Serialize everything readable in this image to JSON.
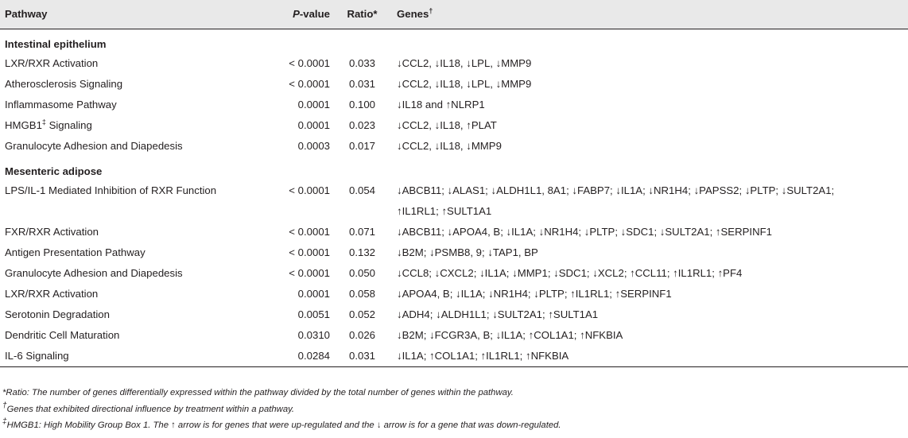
{
  "header": {
    "pathway": "Pathway",
    "pvalue_p": "P",
    "pvalue_rest": "-value",
    "ratio": "Ratio*",
    "genes": "Genes",
    "genes_sup": "†"
  },
  "sections": [
    {
      "title": "Intestinal epithelium",
      "rows": [
        {
          "pathway": "LXR/RXR Activation",
          "pvalue": "< 0.0001",
          "ratio": "0.033",
          "genes": "↓CCL2, ↓IL18, ↓LPL, ↓MMP9"
        },
        {
          "pathway": "Atherosclerosis Signaling",
          "pvalue": "< 0.0001",
          "ratio": "0.031",
          "genes": "↓CCL2, ↓IL18, ↓LPL, ↓MMP9"
        },
        {
          "pathway": "Inflammasome Pathway",
          "pvalue": "0.0001",
          "ratio": "0.100",
          "genes": "↓IL18 and ↑NLRP1"
        },
        {
          "pathway": "HMGB1",
          "pathway_sup": "‡",
          "pathway_suffix": " Signaling",
          "pvalue": "0.0001",
          "ratio": "0.023",
          "genes": "↓CCL2, ↓IL18, ↑PLAT"
        },
        {
          "pathway": "Granulocyte Adhesion and Diapedesis",
          "pvalue": "0.0003",
          "ratio": "0.017",
          "genes": "↓CCL2, ↓IL18, ↓MMP9"
        }
      ]
    },
    {
      "title": "Mesenteric adipose",
      "rows": [
        {
          "pathway": "LPS/IL-1 Mediated Inhibition of RXR Function",
          "pvalue": "< 0.0001",
          "ratio": "0.054",
          "genes": "↓ABCB11; ↓ALAS1; ↓ALDH1L1, 8A1; ↓FABP7; ↓IL1A; ↓NR1H4; ↓PAPSS2; ↓PLTP; ↓SULT2A1;",
          "genes_line2": "↑IL1RL1; ↑SULT1A1"
        },
        {
          "pathway": "FXR/RXR Activation",
          "pvalue": "< 0.0001",
          "ratio": "0.071",
          "genes": "↓ABCB11; ↓APOA4, B; ↓IL1A; ↓NR1H4; ↓PLTP; ↓SDC1; ↓SULT2A1; ↑SERPINF1"
        },
        {
          "pathway": "Antigen Presentation Pathway",
          "pvalue": "< 0.0001",
          "ratio": "0.132",
          "genes": "↓B2M; ↓PSMB8, 9; ↓TAP1, BP"
        },
        {
          "pathway": "Granulocyte Adhesion and Diapedesis",
          "pvalue": "< 0.0001",
          "ratio": "0.050",
          "genes": "↓CCL8; ↓CXCL2; ↓IL1A; ↓MMP1; ↓SDC1; ↓XCL2; ↑CCL11; ↑IL1RL1; ↑PF4"
        },
        {
          "pathway": "LXR/RXR Activation",
          "pvalue": "0.0001",
          "ratio": "0.058",
          "genes": "↓APOA4, B; ↓IL1A; ↓NR1H4; ↓PLTP; ↑IL1RL1; ↑SERPINF1"
        },
        {
          "pathway": "Serotonin Degradation",
          "pvalue": "0.0051",
          "ratio": "0.052",
          "genes": "↓ADH4; ↓ALDH1L1; ↓SULT2A1; ↑SULT1A1"
        },
        {
          "pathway": "Dendritic Cell Maturation",
          "pvalue": "0.0310",
          "ratio": "0.026",
          "genes": "↓B2M; ↓FCGR3A, B; ↓IL1A; ↑COL1A1; ↑NFKBIA"
        },
        {
          "pathway": "IL-6 Signaling",
          "pvalue": "0.0284",
          "ratio": "0.031",
          "genes": "↓IL1A; ↑COL1A1; ↑IL1RL1; ↑NFKBIA"
        }
      ]
    }
  ],
  "footnotes": {
    "ratio": "*Ratio: The number of genes differentially expressed within the pathway divided by the total number of genes within the pathway.",
    "genes_sym": "†",
    "genes": "Genes that exhibited directional influence by treatment within a pathway.",
    "hmgb_sym": "‡",
    "hmgb": "HMGB1: High Mobility Group Box 1. The ↑ arrow is for genes that were up-regulated and the ↓ arrow is for a gene that was down-regulated."
  }
}
